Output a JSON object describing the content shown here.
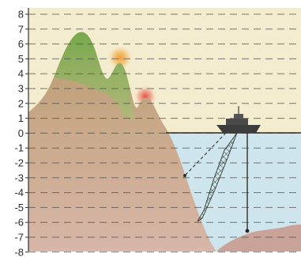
{
  "axis": {
    "ticks": [
      "8",
      "7",
      "6",
      "5",
      "4",
      "3",
      "2",
      "1",
      "0",
      "-1",
      "-2",
      "-3",
      "-4",
      "-5",
      "-6",
      "-7",
      "-8"
    ]
  },
  "colors": {
    "sky": "#f4ecce",
    "sky_top": "#f7f1db",
    "sea": "#cfe5ee",
    "mountain_lower": "#d6b3a5",
    "mountain_upper": "#b79a6e",
    "vegetation": "#7fb255",
    "seabed": "#c9a398",
    "sun_glow": "#f0a43a",
    "red_glow": "#e35a4e",
    "boat": "#3c3c3c",
    "grid": "#555555"
  },
  "icons": {
    "boat": "ship-icon",
    "net": "fishing-net-icon",
    "sounding_line": "depth-sounding-line-icon"
  }
}
